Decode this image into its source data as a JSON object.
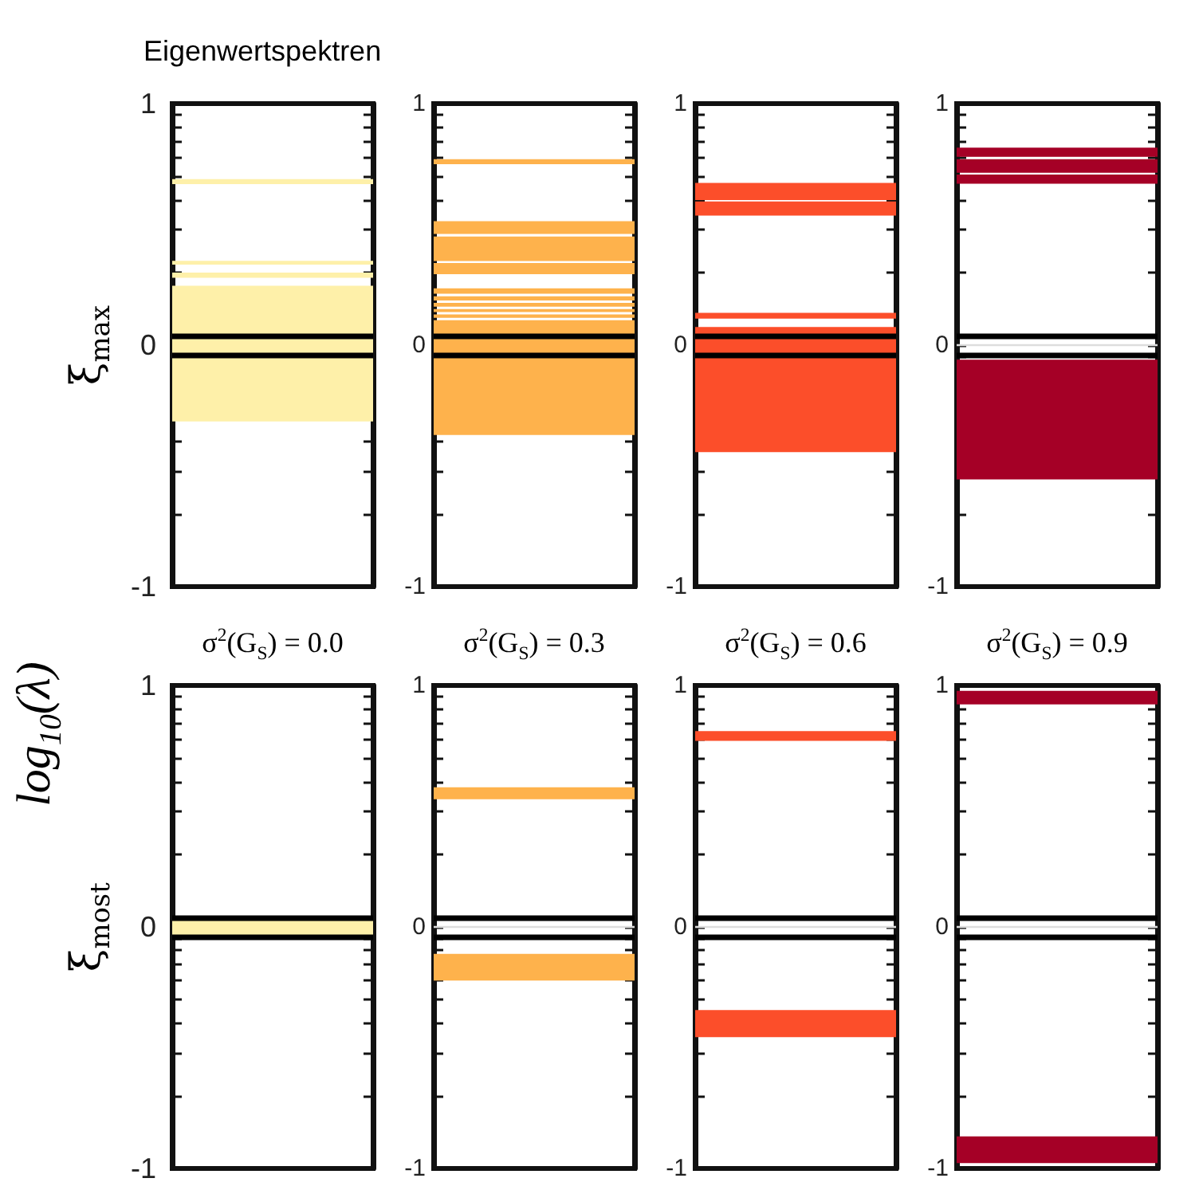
{
  "chart_data": [
    {
      "type": "bar",
      "title": "Eigenwertspektren",
      "ylabel": "ξ$_{max}$",
      "categories": [
        null
      ],
      "tick_labels": "y",
      "ylim": [
        -1,
        1
      ],
      "yticks": [
        -1,
        {
          "value": -0.699,
          "label": null
        },
        {
          "value": -0.523,
          "label": null
        },
        {
          "value": -0.398,
          "label": null
        },
        {
          "value": -0.301,
          "label": null
        },
        {
          "value": -0.222,
          "label": null
        },
        {
          "value": -0.155,
          "label": null
        },
        {
          "value": -0.097,
          "label": null
        },
        {
          "value": -0.046,
          "label": null
        },
        0,
        {
          "value": 0.301,
          "label": null
        },
        {
          "value": 0.477,
          "label": null
        },
        {
          "value": 0.602,
          "label": null
        },
        {
          "value": 0.699,
          "label": null
        },
        {
          "value": 0.778,
          "label": null
        },
        {
          "value": 0.845,
          "label": null
        },
        {
          "value": 0.903,
          "label": null
        },
        {
          "value": 0.954,
          "label": null
        },
        1
      ],
      "series": [
        {
          "color": "#fef0a9",
          "base": [
            0.667
          ],
          "values": [
            0.02
          ]
        },
        {
          "color": "#fef0a9",
          "base": [
            0.333
          ],
          "values": [
            0.016
          ]
        },
        {
          "color": "#fef0a9",
          "base": [
            0.279
          ],
          "values": [
            0.021
          ]
        },
        {
          "color": "#fef0a9",
          "base": [
            -0.316
          ],
          "values": [
            0.562
          ]
        }
      ],
      "ref_lines": [
        {
          "axis": "y",
          "value": 0.04,
          "color": "#000000"
        },
        {
          "axis": "y",
          "value": -0.045,
          "color": "#000000"
        }
      ]
    },
    {
      "type": "bar",
      "categories": [
        null
      ],
      "tick_labels": "y",
      "ylim": [
        -1,
        1
      ],
      "yticks": [
        -1,
        {
          "value": -0.699,
          "label": null
        },
        {
          "value": -0.523,
          "label": null
        },
        {
          "value": -0.398,
          "label": null
        },
        {
          "value": -0.301,
          "label": null
        },
        {
          "value": -0.222,
          "label": null
        },
        {
          "value": -0.155,
          "label": null
        },
        {
          "value": -0.097,
          "label": null
        },
        {
          "value": -0.046,
          "label": null
        },
        0,
        {
          "value": 0.301,
          "label": null
        },
        {
          "value": 0.477,
          "label": null
        },
        {
          "value": 0.602,
          "label": null
        },
        {
          "value": 0.699,
          "label": null
        },
        {
          "value": 0.778,
          "label": null
        },
        {
          "value": 0.845,
          "label": null
        },
        {
          "value": 0.903,
          "label": null
        },
        {
          "value": 0.954,
          "label": null
        },
        1
      ],
      "series": [
        {
          "color": "#feb24c",
          "base": [
            0.749
          ],
          "values": [
            0.021
          ]
        },
        {
          "color": "#feb24c",
          "base": [
            0.46
          ],
          "values": [
            0.053
          ]
        },
        {
          "color": "#feb24c",
          "base": [
            0.348
          ],
          "values": [
            0.102
          ]
        },
        {
          "color": "#feb24c",
          "base": [
            0.294
          ],
          "values": [
            0.046
          ]
        },
        {
          "color": "#feb24c",
          "base": [
            0.213
          ],
          "values": [
            0.022
          ]
        },
        {
          "color": "#feb24c",
          "base": [
            0.185
          ],
          "values": [
            0.017
          ]
        },
        {
          "color": "#feb24c",
          "base": [
            0.159
          ],
          "values": [
            0.016
          ]
        },
        {
          "color": "#feb24c",
          "base": [
            0.137
          ],
          "values": [
            0.012
          ]
        },
        {
          "color": "#feb24c",
          "base": [
            0.113
          ],
          "values": [
            0.014
          ]
        },
        {
          "color": "#feb24c",
          "base": [
            -0.372
          ],
          "values": [
            0.475
          ]
        }
      ],
      "ref_lines": [
        {
          "axis": "y",
          "value": 0.04,
          "color": "#000000"
        },
        {
          "axis": "y",
          "value": -0.045,
          "color": "#000000"
        }
      ]
    },
    {
      "type": "bar",
      "categories": [
        null
      ],
      "tick_labels": "y",
      "ylim": [
        -1,
        1
      ],
      "yticks": [
        -1,
        {
          "value": -0.699,
          "label": null
        },
        {
          "value": -0.523,
          "label": null
        },
        {
          "value": -0.398,
          "label": null
        },
        {
          "value": -0.301,
          "label": null
        },
        {
          "value": -0.222,
          "label": null
        },
        {
          "value": -0.155,
          "label": null
        },
        {
          "value": -0.097,
          "label": null
        },
        {
          "value": -0.046,
          "label": null
        },
        0,
        {
          "value": 0.301,
          "label": null
        },
        {
          "value": 0.477,
          "label": null
        },
        {
          "value": 0.602,
          "label": null
        },
        {
          "value": 0.699,
          "label": null
        },
        {
          "value": 0.778,
          "label": null
        },
        {
          "value": 0.845,
          "label": null
        },
        {
          "value": 0.903,
          "label": null
        },
        {
          "value": 0.954,
          "label": null
        },
        1
      ],
      "series": [
        {
          "color": "#fc4e2a",
          "base": [
            0.601
          ],
          "values": [
            0.071
          ]
        },
        {
          "color": "#fc4e2a",
          "base": [
            0.536
          ],
          "values": [
            0.059
          ]
        },
        {
          "color": "#fc4e2a",
          "base": [
            0.11
          ],
          "values": [
            0.024
          ]
        },
        {
          "color": "#fc4e2a",
          "base": [
            -0.443
          ],
          "values": [
            0.518
          ]
        }
      ],
      "ref_lines": [
        {
          "axis": "y",
          "value": 0.04,
          "color": "#000000"
        },
        {
          "axis": "y",
          "value": -0.045,
          "color": "#000000"
        }
      ]
    },
    {
      "type": "bar",
      "categories": [
        null
      ],
      "tick_labels": "y",
      "ylim": [
        -1,
        1
      ],
      "yticks": [
        -1,
        {
          "value": -0.699,
          "label": null
        },
        {
          "value": -0.523,
          "label": null
        },
        {
          "value": -0.398,
          "label": null
        },
        {
          "value": -0.301,
          "label": null
        },
        {
          "value": -0.222,
          "label": null
        },
        {
          "value": -0.155,
          "label": null
        },
        {
          "value": -0.097,
          "label": null
        },
        {
          "value": -0.046,
          "label": null
        },
        0,
        {
          "value": 0.301,
          "label": null
        },
        {
          "value": 0.477,
          "label": null
        },
        {
          "value": 0.602,
          "label": null
        },
        {
          "value": 0.699,
          "label": null
        },
        {
          "value": 0.778,
          "label": null
        },
        {
          "value": 0.845,
          "label": null
        },
        {
          "value": 0.903,
          "label": null
        },
        {
          "value": 0.954,
          "label": null
        },
        1
      ],
      "series": [
        {
          "color": "#a50026",
          "base": [
            0.78
          ],
          "values": [
            0.038
          ]
        },
        {
          "color": "#a50026",
          "base": [
            0.714
          ],
          "values": [
            0.056
          ]
        },
        {
          "color": "#a50026",
          "base": [
            0.668
          ],
          "values": [
            0.038
          ]
        },
        {
          "color": "#a50026",
          "base": [
            -0.556
          ],
          "values": [
            0.496
          ]
        }
      ],
      "ref_lines": [
        {
          "axis": "y",
          "value": 0.04,
          "color": "#000000"
        },
        {
          "axis": "y",
          "value": -0.045,
          "color": "#000000"
        },
        {
          "axis": "y",
          "value": 0,
          "color": "#dddddd"
        }
      ]
    },
    {
      "type": "bar",
      "title": "σ$^{2}$(G$_{S}$) = 0.0",
      "ylabel": "ξ$_{most}$",
      "annotations": [
        "log$_{10}$(λ)"
      ],
      "categories": [
        null
      ],
      "tick_labels": "y",
      "ylim": [
        -1,
        1
      ],
      "yticks": [
        -1,
        {
          "value": -0.699,
          "label": null
        },
        {
          "value": -0.523,
          "label": null
        },
        {
          "value": -0.398,
          "label": null
        },
        {
          "value": -0.301,
          "label": null
        },
        {
          "value": -0.222,
          "label": null
        },
        {
          "value": -0.155,
          "label": null
        },
        {
          "value": -0.097,
          "label": null
        },
        {
          "value": -0.046,
          "label": null
        },
        0,
        {
          "value": 0.301,
          "label": null
        },
        {
          "value": 0.477,
          "label": null
        },
        {
          "value": 0.602,
          "label": null
        },
        {
          "value": 0.699,
          "label": null
        },
        {
          "value": 0.778,
          "label": null
        },
        {
          "value": 0.845,
          "label": null
        },
        {
          "value": 0.903,
          "label": null
        },
        {
          "value": 0.954,
          "label": null
        },
        1
      ],
      "series": [
        {
          "color": "#fef0a9",
          "base": [
            -0.045
          ],
          "values": [
            0.085
          ]
        }
      ],
      "ref_lines": [
        {
          "axis": "y",
          "value": 0.04,
          "color": "#000000"
        },
        {
          "axis": "y",
          "value": -0.045,
          "color": "#000000"
        }
      ]
    },
    {
      "type": "bar",
      "title": "σ$^{2}$(G$_{S}$) = 0.3",
      "categories": [
        null
      ],
      "tick_labels": "y",
      "ylim": [
        -1,
        1
      ],
      "yticks": [
        -1,
        {
          "value": -0.699,
          "label": null
        },
        {
          "value": -0.523,
          "label": null
        },
        {
          "value": -0.398,
          "label": null
        },
        {
          "value": -0.301,
          "label": null
        },
        {
          "value": -0.222,
          "label": null
        },
        {
          "value": -0.155,
          "label": null
        },
        {
          "value": -0.097,
          "label": null
        },
        {
          "value": -0.046,
          "label": null
        },
        0,
        {
          "value": 0.301,
          "label": null
        },
        {
          "value": 0.477,
          "label": null
        },
        {
          "value": 0.602,
          "label": null
        },
        {
          "value": 0.699,
          "label": null
        },
        {
          "value": 0.778,
          "label": null
        },
        {
          "value": 0.845,
          "label": null
        },
        {
          "value": 0.903,
          "label": null
        },
        {
          "value": 0.954,
          "label": null
        },
        1
      ],
      "series": [
        {
          "color": "#feb24c",
          "base": [
            0.529
          ],
          "values": [
            0.049
          ]
        },
        {
          "color": "#feb24c",
          "base": [
            -0.222
          ],
          "values": [
            0.111
          ]
        }
      ],
      "ref_lines": [
        {
          "axis": "y",
          "value": 0.04,
          "color": "#000000"
        },
        {
          "axis": "y",
          "value": -0.045,
          "color": "#000000"
        },
        {
          "axis": "y",
          "value": 0,
          "color": "#dddddd"
        }
      ]
    },
    {
      "type": "bar",
      "title": "σ$^{2}$(G$_{S}$) = 0.6",
      "categories": [
        null
      ],
      "tick_labels": "y",
      "ylim": [
        -1,
        1
      ],
      "yticks": [
        -1,
        {
          "value": -0.699,
          "label": null
        },
        {
          "value": -0.523,
          "label": null
        },
        {
          "value": -0.398,
          "label": null
        },
        {
          "value": -0.301,
          "label": null
        },
        {
          "value": -0.222,
          "label": null
        },
        {
          "value": -0.155,
          "label": null
        },
        {
          "value": -0.097,
          "label": null
        },
        {
          "value": -0.046,
          "label": null
        },
        0,
        {
          "value": 0.301,
          "label": null
        },
        {
          "value": 0.477,
          "label": null
        },
        {
          "value": 0.602,
          "label": null
        },
        {
          "value": 0.699,
          "label": null
        },
        {
          "value": 0.778,
          "label": null
        },
        {
          "value": 0.845,
          "label": null
        },
        {
          "value": 0.903,
          "label": null
        },
        {
          "value": 0.954,
          "label": null
        },
        1
      ],
      "series": [
        {
          "color": "#fc4e2a",
          "base": [
            0.771
          ],
          "values": [
            0.04
          ]
        },
        {
          "color": "#fc4e2a",
          "base": [
            -0.456
          ],
          "values": [
            0.112
          ]
        }
      ],
      "ref_lines": [
        {
          "axis": "y",
          "value": 0.04,
          "color": "#000000"
        },
        {
          "axis": "y",
          "value": -0.045,
          "color": "#000000"
        },
        {
          "axis": "y",
          "value": 0,
          "color": "#dddddd"
        }
      ]
    },
    {
      "type": "bar",
      "title": "σ$^{2}$(G$_{S}$) = 0.9",
      "categories": [
        null
      ],
      "tick_labels": "y",
      "ylim": [
        -1,
        1
      ],
      "yticks": [
        -1,
        {
          "value": -0.699,
          "label": null
        },
        {
          "value": -0.523,
          "label": null
        },
        {
          "value": -0.398,
          "label": null
        },
        {
          "value": -0.301,
          "label": null
        },
        {
          "value": -0.222,
          "label": null
        },
        {
          "value": -0.155,
          "label": null
        },
        {
          "value": -0.097,
          "label": null
        },
        {
          "value": -0.046,
          "label": null
        },
        0,
        {
          "value": 0.301,
          "label": null
        },
        {
          "value": 0.477,
          "label": null
        },
        {
          "value": 0.602,
          "label": null
        },
        {
          "value": 0.699,
          "label": null
        },
        {
          "value": 0.778,
          "label": null
        },
        {
          "value": 0.845,
          "label": null
        },
        {
          "value": 0.903,
          "label": null
        },
        {
          "value": 0.954,
          "label": null
        },
        1
      ],
      "series": [
        {
          "color": "#a50026",
          "base": [
            0.922
          ],
          "values": [
            0.056
          ]
        },
        {
          "color": "#a50026",
          "base": [
            -0.978
          ],
          "values": [
            0.111
          ]
        }
      ],
      "ref_lines": [
        {
          "axis": "y",
          "value": 0.04,
          "color": "#000000"
        },
        {
          "axis": "y",
          "value": -0.045,
          "color": "#000000"
        },
        {
          "axis": "y",
          "value": 0,
          "color": "#dddddd"
        }
      ]
    }
  ]
}
